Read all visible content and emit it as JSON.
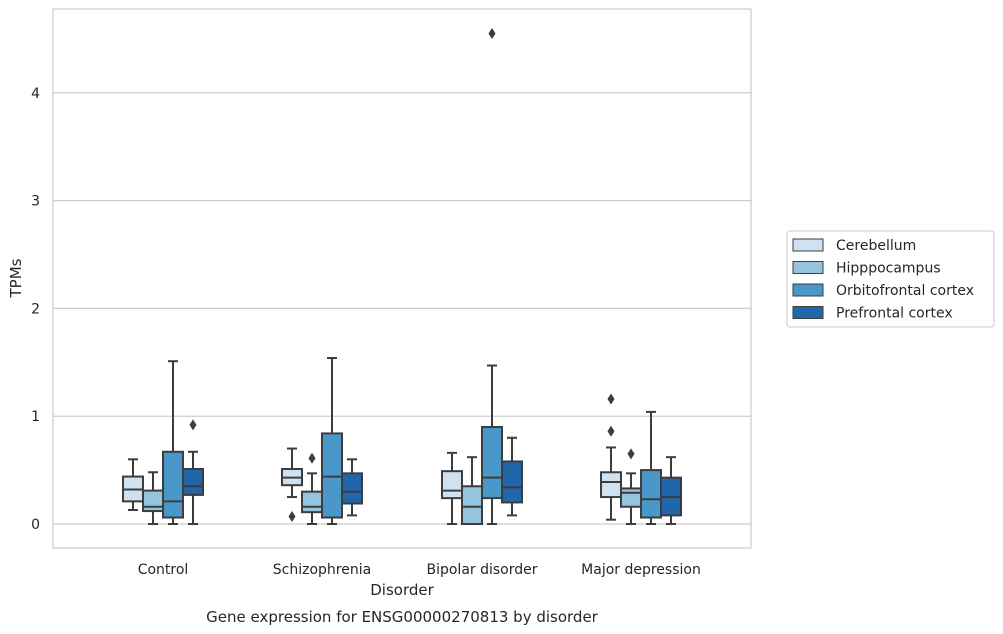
{
  "chart_data": {
    "type": "box",
    "caption": "Gene expression for ENSG00000270813 by disorder",
    "xlabel": "Disorder",
    "ylabel": "TPMs",
    "ylim": [
      -0.22,
      4.8
    ],
    "yticks": [
      0,
      1,
      2,
      3,
      4
    ],
    "grid": "horizontal",
    "legend_position": "right",
    "categories": [
      "Control",
      "Schizophrenia",
      "Bipolar disorder",
      "Major depression"
    ],
    "series": [
      {
        "name": "Cerebellum",
        "color": "#d0e1f2",
        "boxes": [
          {
            "whislo": 0.13,
            "q1": 0.21,
            "med": 0.32,
            "q3": 0.44,
            "whishi": 0.6,
            "fliers": []
          },
          {
            "whislo": 0.25,
            "q1": 0.36,
            "med": 0.43,
            "q3": 0.51,
            "whishi": 0.7,
            "fliers": [
              0.07
            ]
          },
          {
            "whislo": 0.0,
            "q1": 0.24,
            "med": 0.31,
            "q3": 0.49,
            "whishi": 0.66,
            "fliers": []
          },
          {
            "whislo": 0.04,
            "q1": 0.25,
            "med": 0.39,
            "q3": 0.48,
            "whishi": 0.71,
            "fliers": [
              0.86,
              1.16
            ]
          }
        ]
      },
      {
        "name": "Hipppocampus",
        "color": "#94c4df",
        "boxes": [
          {
            "whislo": 0.0,
            "q1": 0.12,
            "med": 0.16,
            "q3": 0.31,
            "whishi": 0.48,
            "fliers": []
          },
          {
            "whislo": 0.0,
            "q1": 0.11,
            "med": 0.16,
            "q3": 0.3,
            "whishi": 0.47,
            "fliers": [
              0.61
            ]
          },
          {
            "whislo": 0.0,
            "q1": 0.0,
            "med": 0.16,
            "q3": 0.35,
            "whishi": 0.62,
            "fliers": []
          },
          {
            "whislo": 0.0,
            "q1": 0.16,
            "med": 0.29,
            "q3": 0.33,
            "whishi": 0.47,
            "fliers": [
              0.65
            ]
          }
        ]
      },
      {
        "name": "Orbitofrontal cortex",
        "color": "#4a98c9",
        "boxes": [
          {
            "whislo": 0.0,
            "q1": 0.06,
            "med": 0.21,
            "q3": 0.67,
            "whishi": 1.51,
            "fliers": []
          },
          {
            "whislo": 0.0,
            "q1": 0.06,
            "med": 0.44,
            "q3": 0.84,
            "whishi": 1.54,
            "fliers": []
          },
          {
            "whislo": 0.0,
            "q1": 0.24,
            "med": 0.43,
            "q3": 0.9,
            "whishi": 1.47,
            "fliers": [
              4.55
            ]
          },
          {
            "whislo": 0.0,
            "q1": 0.06,
            "med": 0.23,
            "q3": 0.5,
            "whishi": 1.04,
            "fliers": []
          }
        ]
      },
      {
        "name": "Prefrontal cortex",
        "color": "#2165ab",
        "boxes": [
          {
            "whislo": 0.0,
            "q1": 0.27,
            "med": 0.35,
            "q3": 0.51,
            "whishi": 0.67,
            "fliers": [
              0.92
            ]
          },
          {
            "whislo": 0.08,
            "q1": 0.19,
            "med": 0.3,
            "q3": 0.47,
            "whishi": 0.6,
            "fliers": []
          },
          {
            "whislo": 0.08,
            "q1": 0.2,
            "med": 0.34,
            "q3": 0.58,
            "whishi": 0.8,
            "fliers": []
          },
          {
            "whislo": 0.0,
            "q1": 0.08,
            "med": 0.25,
            "q3": 0.43,
            "whishi": 0.62,
            "fliers": []
          }
        ]
      }
    ]
  }
}
